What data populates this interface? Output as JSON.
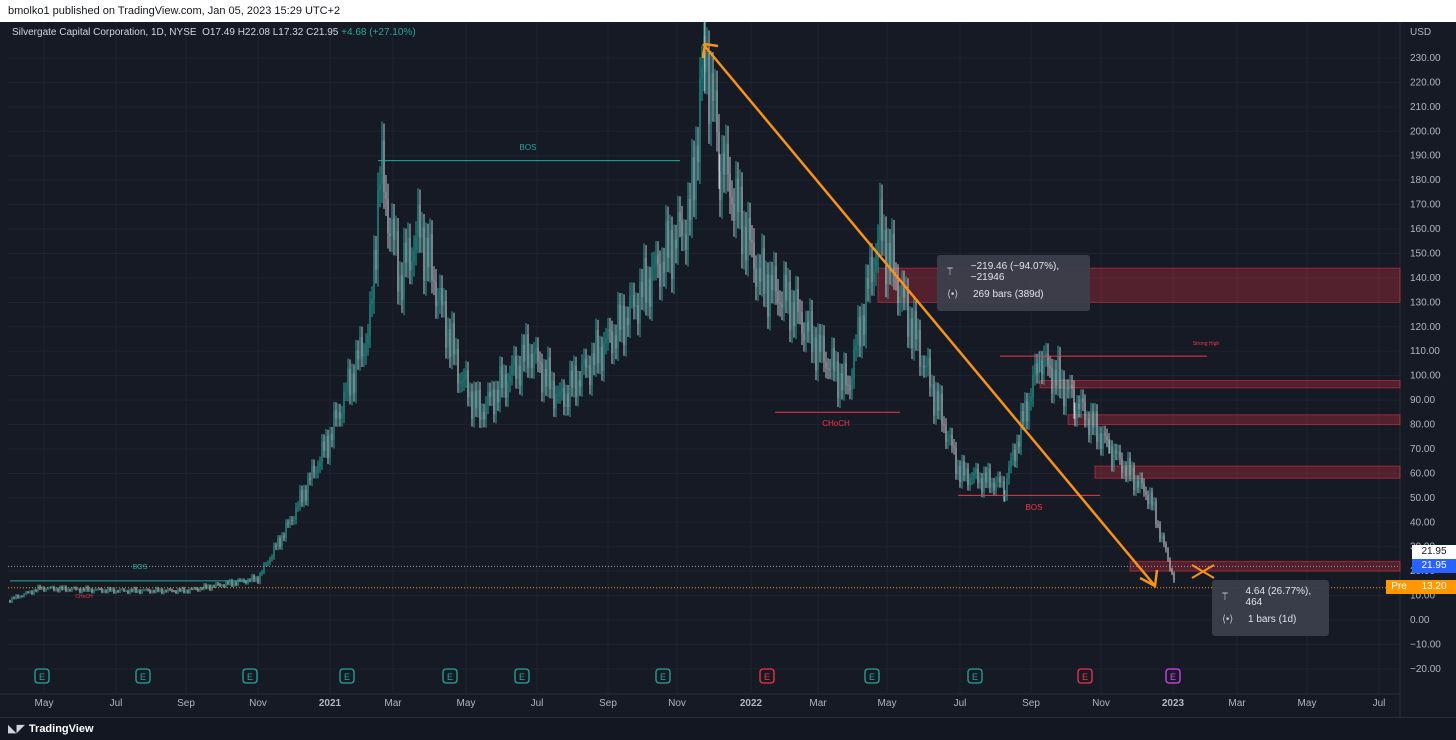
{
  "header": {
    "publish_line": "bmolko1 published on TradingView.com, Jan 05, 2023 15:29 UTC+2"
  },
  "legend": {
    "symbol": "Silvergate Capital Corporation, 1D, NYSE",
    "open_label": "O",
    "open": "17.49",
    "high_label": "H",
    "high": "22.08",
    "low_label": "L",
    "low": "17.32",
    "close_label": "C",
    "close": "21.95",
    "change": "+4.68 (+27.10%)"
  },
  "colors": {
    "up": "#26a69a",
    "down": "#ef5350",
    "teal_bos": "#26a69a",
    "red_choch": "#f23645",
    "arrow": "#f7931a",
    "price_box": "#2962ff",
    "pre_box": "#ff9800"
  },
  "tooltips": {
    "measure1": {
      "line1": "−219.46 (−94.07%), −21946",
      "line2": "269 bars (389d)"
    },
    "measure2": {
      "line1": "4.64 (26.77%), 464",
      "line2": "1 bars (1d)"
    }
  },
  "price_labels": {
    "last_white": "21.95",
    "last_blue": "21.95",
    "pre_tag": "Pre",
    "pre_value": "13.20"
  },
  "footer": {
    "brand": "TradingView"
  },
  "chart_data": {
    "type": "candlestick",
    "title": "Silvergate Capital Corporation, 1D, NYSE",
    "currency_label": "USD",
    "ylim": [
      -25,
      240
    ],
    "y_ticks": [
      "230.00",
      "220.00",
      "210.00",
      "200.00",
      "190.00",
      "180.00",
      "170.00",
      "160.00",
      "150.00",
      "140.00",
      "130.00",
      "120.00",
      "110.00",
      "100.00",
      "90.00",
      "80.00",
      "70.00",
      "60.00",
      "50.00",
      "40.00",
      "30.00",
      "20.00",
      "10.00",
      "0.00",
      "−10.00",
      "−20.00"
    ],
    "x_ticks": [
      "May",
      "Jul",
      "Sep",
      "Nov",
      "2021",
      "Mar",
      "May",
      "Jul",
      "Sep",
      "Nov",
      "2022",
      "Mar",
      "May",
      "Jul",
      "Sep",
      "Nov",
      "2023",
      "Mar",
      "May",
      "Jul"
    ],
    "series": [
      {
        "name": "Price",
        "points": [
          [
            "2020-04",
            8
          ],
          [
            "2020-05",
            13
          ],
          [
            "2020-07",
            12
          ],
          [
            "2020-09",
            12
          ],
          [
            "2020-11",
            17
          ],
          [
            "2020-12",
            40
          ],
          [
            "2021-01",
            75
          ],
          [
            "2021-02",
            120
          ],
          [
            "2021-02b",
            185
          ],
          [
            "2021-03",
            140
          ],
          [
            "2021-04",
            160
          ],
          [
            "2021-05",
            100
          ],
          [
            "2021-06",
            85
          ],
          [
            "2021-07",
            110
          ],
          [
            "2021-08",
            90
          ],
          [
            "2021-09",
            120
          ],
          [
            "2021-10",
            165
          ],
          [
            "2021-11",
            235
          ],
          [
            "2021-11b",
            190
          ],
          [
            "2021-12",
            140
          ],
          [
            "2022-01",
            130
          ],
          [
            "2022-02",
            110
          ],
          [
            "2022-03",
            95
          ],
          [
            "2022-04",
            160
          ],
          [
            "2022-05",
            110
          ],
          [
            "2022-06",
            60
          ],
          [
            "2022-07",
            55
          ],
          [
            "2022-08",
            107
          ],
          [
            "2022-09",
            90
          ],
          [
            "2022-10",
            70
          ],
          [
            "2022-11",
            50
          ],
          [
            "2022-12",
            15
          ],
          [
            "2023-01",
            21.95
          ]
        ]
      }
    ],
    "structure_labels": [
      {
        "text": "BOS",
        "price": 188,
        "at": "2021-06"
      },
      {
        "text": "CHoCH",
        "price": 80,
        "at": "2022-04"
      },
      {
        "text": "BOS",
        "price": 45,
        "at": "2022-09"
      },
      {
        "text": "Strong High",
        "price": 110,
        "at": "2022-12"
      },
      {
        "text": "BOS",
        "price": 22,
        "at": "2020-07"
      },
      {
        "text": "CHoCH",
        "price": 8,
        "at": "2020-10"
      }
    ],
    "supply_zones": [
      [
        130,
        144
      ],
      [
        95,
        98
      ],
      [
        80,
        84
      ],
      [
        58,
        63
      ],
      [
        20,
        24
      ]
    ],
    "earnings_markers": [
      "E",
      "E",
      "E",
      "E",
      "E",
      "E",
      "E",
      "E",
      "E",
      "E",
      "E",
      "E",
      "E",
      "E",
      "E"
    ]
  }
}
